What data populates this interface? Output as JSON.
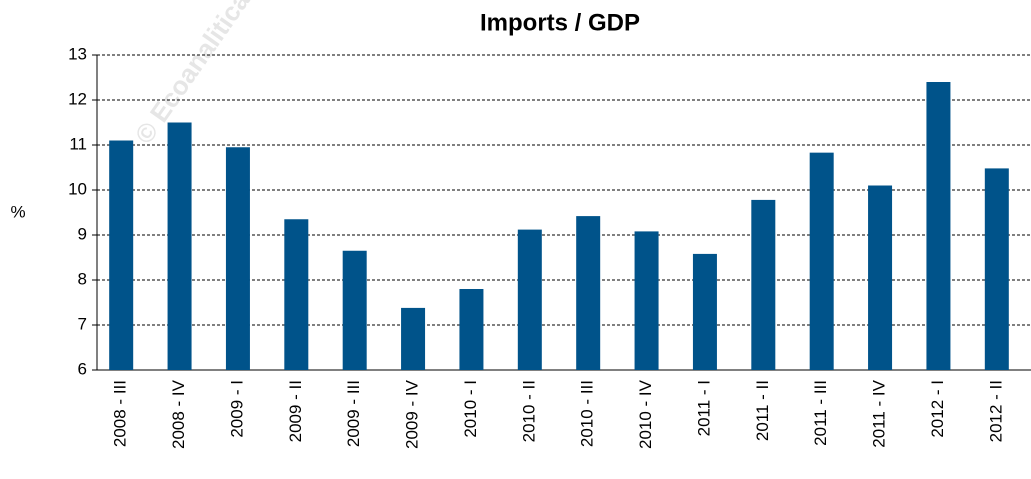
{
  "chart_data": {
    "type": "bar",
    "title": "Imports / GDP",
    "y_label": "%",
    "watermark": "© Ecoanalitica –",
    "categories": [
      "2008 - III",
      "2008 - IV",
      "2009 - I",
      "2009 - II",
      "2009 - III",
      "2009 - IV",
      "2010 - I",
      "2010 - II",
      "2010 - III",
      "2010 - IV",
      "2011 - I",
      "2011 - II",
      "2011 - III",
      "2011 - IV",
      "2012 - I",
      "2012 - II"
    ],
    "values": [
      11.1,
      11.5,
      10.95,
      9.35,
      8.65,
      7.38,
      7.8,
      9.12,
      9.42,
      9.08,
      8.58,
      9.78,
      10.83,
      10.1,
      12.4,
      10.48
    ],
    "color": "#00538a",
    "ylim": [
      6,
      13
    ],
    "yticks": [
      6,
      7,
      8,
      9,
      10,
      11,
      12,
      13
    ],
    "grid": true
  }
}
